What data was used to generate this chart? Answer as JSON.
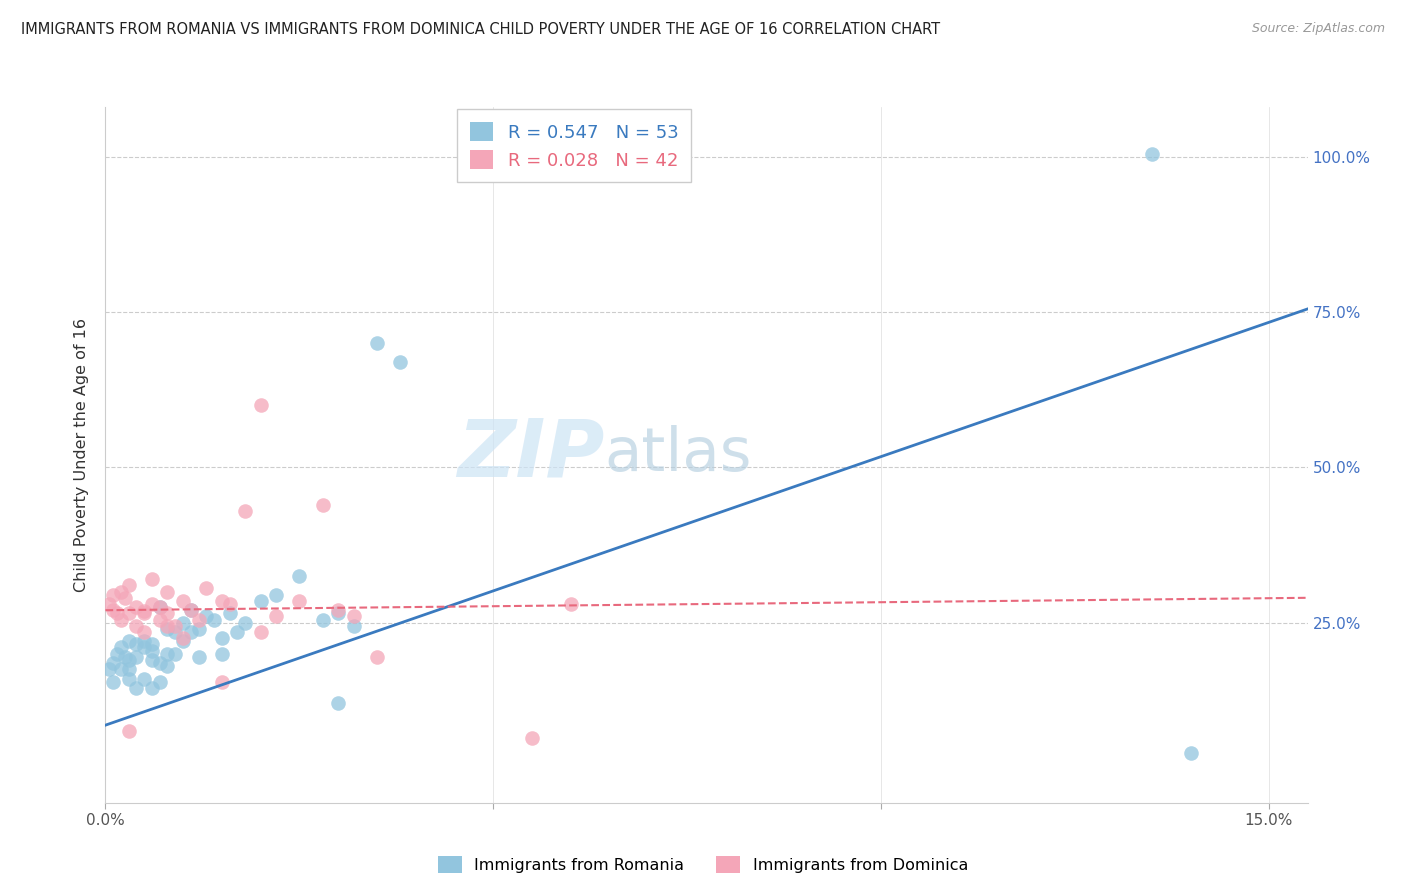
{
  "title": "IMMIGRANTS FROM ROMANIA VS IMMIGRANTS FROM DOMINICA CHILD POVERTY UNDER THE AGE OF 16 CORRELATION CHART",
  "source": "Source: ZipAtlas.com",
  "ylabel": "Child Poverty Under the Age of 16",
  "x_lim": [
    0.0,
    0.155
  ],
  "y_lim": [
    -0.04,
    1.08
  ],
  "legend_romania_r": "R = 0.547",
  "legend_romania_n": "N = 53",
  "legend_dominica_r": "R = 0.028",
  "legend_dominica_n": "N = 42",
  "color_romania": "#92c5de",
  "color_dominica": "#f4a6b8",
  "color_romania_line": "#3a7abf",
  "color_dominica_line": "#e8697d",
  "romania_x": [
    0.0005,
    0.001,
    0.001,
    0.0015,
    0.002,
    0.002,
    0.0025,
    0.003,
    0.003,
    0.003,
    0.003,
    0.004,
    0.004,
    0.004,
    0.005,
    0.005,
    0.005,
    0.006,
    0.006,
    0.006,
    0.006,
    0.007,
    0.007,
    0.007,
    0.008,
    0.008,
    0.008,
    0.009,
    0.009,
    0.01,
    0.01,
    0.011,
    0.011,
    0.012,
    0.012,
    0.013,
    0.014,
    0.015,
    0.015,
    0.016,
    0.017,
    0.018,
    0.02,
    0.022,
    0.025,
    0.028,
    0.03,
    0.032,
    0.035,
    0.038,
    0.03,
    0.14,
    0.135
  ],
  "romania_y": [
    0.175,
    0.185,
    0.155,
    0.2,
    0.21,
    0.175,
    0.195,
    0.16,
    0.22,
    0.19,
    0.175,
    0.215,
    0.145,
    0.195,
    0.16,
    0.21,
    0.22,
    0.145,
    0.19,
    0.215,
    0.205,
    0.155,
    0.185,
    0.275,
    0.18,
    0.24,
    0.2,
    0.235,
    0.2,
    0.25,
    0.22,
    0.235,
    0.27,
    0.195,
    0.24,
    0.26,
    0.255,
    0.2,
    0.225,
    0.265,
    0.235,
    0.25,
    0.285,
    0.295,
    0.325,
    0.255,
    0.265,
    0.245,
    0.7,
    0.67,
    0.12,
    0.04,
    1.005
  ],
  "dominica_x": [
    0.0005,
    0.001,
    0.001,
    0.0015,
    0.002,
    0.002,
    0.0025,
    0.003,
    0.003,
    0.004,
    0.004,
    0.005,
    0.005,
    0.006,
    0.006,
    0.007,
    0.007,
    0.008,
    0.008,
    0.009,
    0.01,
    0.011,
    0.012,
    0.013,
    0.015,
    0.016,
    0.018,
    0.02,
    0.022,
    0.025,
    0.028,
    0.03,
    0.032,
    0.035,
    0.02,
    0.015,
    0.01,
    0.008,
    0.005,
    0.003,
    0.055,
    0.06
  ],
  "dominica_y": [
    0.28,
    0.27,
    0.295,
    0.265,
    0.3,
    0.255,
    0.29,
    0.265,
    0.31,
    0.245,
    0.275,
    0.235,
    0.268,
    0.28,
    0.32,
    0.255,
    0.275,
    0.3,
    0.265,
    0.245,
    0.285,
    0.27,
    0.255,
    0.305,
    0.285,
    0.28,
    0.43,
    0.235,
    0.26,
    0.285,
    0.44,
    0.27,
    0.26,
    0.195,
    0.6,
    0.155,
    0.225,
    0.245,
    0.265,
    0.075,
    0.065,
    0.28
  ],
  "rom_line_x": [
    0.0,
    0.155
  ],
  "rom_line_y": [
    0.085,
    0.755
  ],
  "dom_line_x": [
    0.0,
    0.155
  ],
  "dom_line_y": [
    0.27,
    0.29
  ]
}
